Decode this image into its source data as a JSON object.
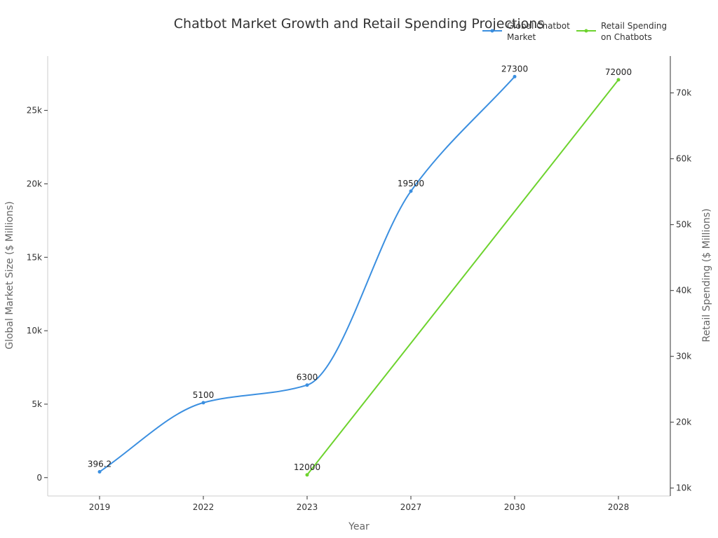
{
  "chart_data": {
    "type": "line",
    "title": "Chatbot Market Growth and Retail Spending Projections",
    "xlabel": "Year",
    "ylabel_left": "Global Market Size ($ Millions)",
    "ylabel_right": "Retail Spending ($ Millions)",
    "categories": [
      "2019",
      "2022",
      "2023",
      "2027",
      "2030",
      "2028"
    ],
    "ylim_left": [
      -1250,
      28700
    ],
    "ylim_right": [
      8800,
      75600
    ],
    "yticks_left": [
      {
        "value": 0,
        "label": "0"
      },
      {
        "value": 5000,
        "label": "5k"
      },
      {
        "value": 10000,
        "label": "10k"
      },
      {
        "value": 15000,
        "label": "15k"
      },
      {
        "value": 20000,
        "label": "20k"
      },
      {
        "value": 25000,
        "label": "25k"
      }
    ],
    "yticks_right": [
      {
        "value": 10000,
        "label": "10k"
      },
      {
        "value": 20000,
        "label": "20k"
      },
      {
        "value": 30000,
        "label": "30k"
      },
      {
        "value": 40000,
        "label": "40k"
      },
      {
        "value": 50000,
        "label": "50k"
      },
      {
        "value": 60000,
        "label": "60k"
      },
      {
        "value": 70000,
        "label": "70k"
      }
    ],
    "legend_position": "top-right",
    "series": [
      {
        "name": "Global Chatbot Market",
        "legend_lines": [
          "Global Chatbot",
          "Market"
        ],
        "axis": "left",
        "color": "#3b8fe0",
        "smooth": true,
        "points": [
          {
            "category": "2019",
            "value": 396.2,
            "label": "396.2"
          },
          {
            "category": "2022",
            "value": 5100,
            "label": "5100"
          },
          {
            "category": "2023",
            "value": 6300,
            "label": "6300"
          },
          {
            "category": "2027",
            "value": 19500,
            "label": "19500"
          },
          {
            "category": "2030",
            "value": 27300,
            "label": "27300"
          }
        ]
      },
      {
        "name": "Retail Spending on Chatbots",
        "legend_lines": [
          "Retail Spending",
          "on Chatbots"
        ],
        "axis": "right",
        "color": "#6dd32e",
        "smooth": false,
        "points": [
          {
            "category": "2023",
            "value": 12000,
            "label": "12000"
          },
          {
            "category": "2028",
            "value": 72000,
            "label": "72000"
          }
        ]
      }
    ]
  }
}
